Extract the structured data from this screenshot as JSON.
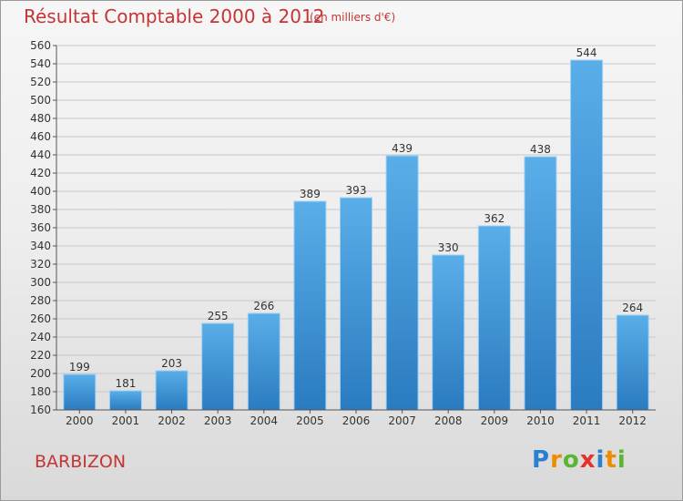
{
  "header": {
    "title": "Résultat Comptable 2000 à 2012",
    "subtitle": "(en milliers d'€)"
  },
  "footer": {
    "location": "BARBIZON",
    "logo": "Proxiti",
    "logo_letters": [
      {
        "ch": "P",
        "color": "#2a7fd0"
      },
      {
        "ch": "r",
        "color": "#f08a00"
      },
      {
        "ch": "o",
        "color": "#5ab532"
      },
      {
        "ch": "x",
        "color": "#e8312a"
      },
      {
        "ch": "i",
        "color": "#2a7fd0"
      },
      {
        "ch": "t",
        "color": "#f08a00"
      },
      {
        "ch": "i",
        "color": "#5ab532"
      }
    ]
  },
  "chart_data": {
    "type": "bar",
    "title": "Résultat Comptable 2000 à 2012",
    "subtitle": "(en milliers d'€)",
    "categories": [
      "2000",
      "2001",
      "2002",
      "2003",
      "2004",
      "2005",
      "2006",
      "2007",
      "2008",
      "2009",
      "2010",
      "2011",
      "2012"
    ],
    "values": [
      199,
      181,
      203,
      255,
      266,
      389,
      393,
      439,
      330,
      362,
      438,
      544,
      264
    ],
    "ylim": [
      160,
      560
    ],
    "yticks": [
      160,
      180,
      200,
      220,
      240,
      260,
      280,
      300,
      320,
      340,
      360,
      380,
      400,
      420,
      440,
      460,
      480,
      500,
      520,
      540,
      560
    ],
    "grid": true,
    "bar_color": "#4a9fe0",
    "bar_color_dark": "#2a7bc0",
    "grid_color": "#c8c8c8",
    "accent_color": "#c43535"
  }
}
